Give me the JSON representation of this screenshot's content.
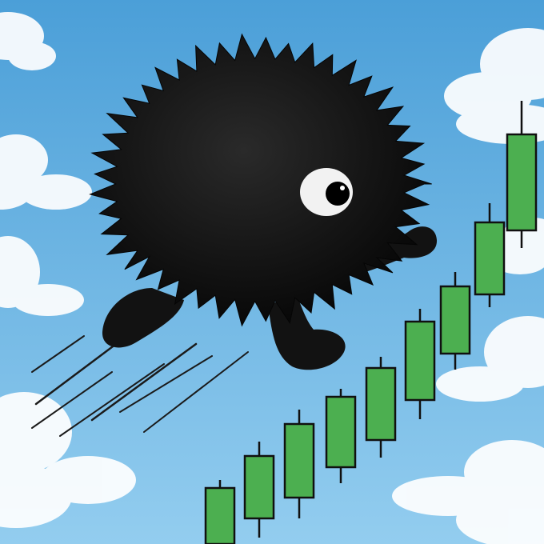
{
  "scene": {
    "sky_colors": {
      "top": "#4b9fd8",
      "bottom": "#93cdef"
    },
    "cloud_color": "#ffffff",
    "creature": {
      "fur_color": "#121212",
      "eye_white": "#f2f2f2",
      "pupil_color": "#000000"
    },
    "candles": {
      "body_color": "#4caf50",
      "outline_color": "#101010",
      "trend": "rising",
      "count": 9
    },
    "motion_lines_color": "#1a1a1a"
  }
}
